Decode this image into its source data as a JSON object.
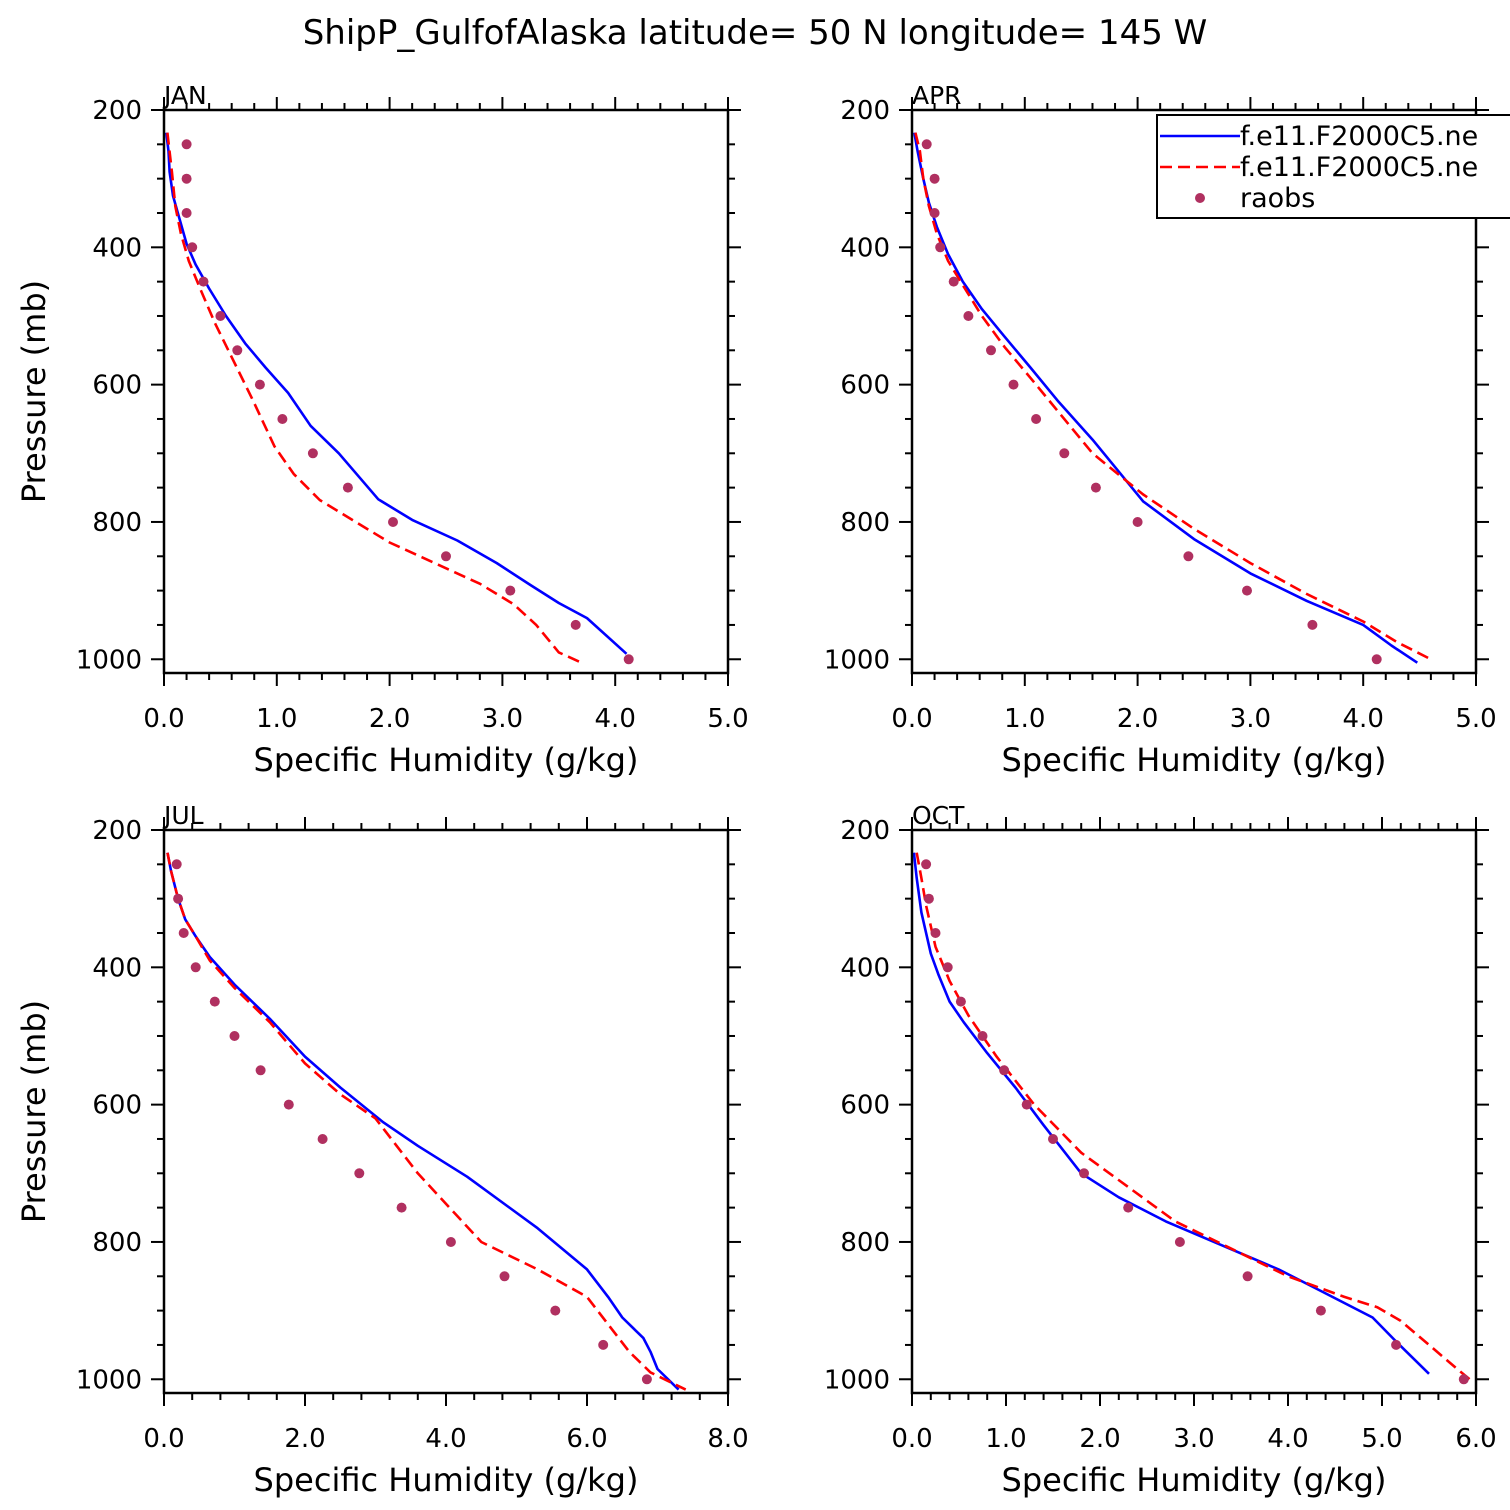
{
  "figure": {
    "title": "ShipP_GulfofAlaska  latitude= 50 N longitude= 145 W"
  },
  "legend": {
    "entries": [
      {
        "label": "f.e11.F2000C5.ne",
        "color": "#0000ff",
        "style": "solid"
      },
      {
        "label": "f.e11.F2000C5.ne",
        "color": "#ff0000",
        "style": "dashed"
      },
      {
        "label": "raobs",
        "color": "#b03060",
        "style": "marker"
      }
    ]
  },
  "chart_data": [
    {
      "type": "line",
      "panel_label": "JAN",
      "xlabel": "Specific Humidity (g/kg)",
      "ylabel": "Pressure (mb)",
      "xlim": [
        0,
        5
      ],
      "ylim": [
        1000,
        200
      ],
      "xticks": [
        "0.0",
        "1.0",
        "2.0",
        "3.0",
        "4.0",
        "5.0"
      ],
      "yticks": [
        "200",
        "400",
        "600",
        "800",
        "1000"
      ],
      "series": [
        {
          "style": "solid",
          "color": "#0000ff",
          "x": [
            0.02,
            0.04,
            0.05,
            0.08,
            0.14,
            0.2,
            0.28,
            0.4,
            0.55,
            0.72,
            0.9,
            1.1,
            1.3,
            1.55,
            1.9,
            2.2,
            2.6,
            2.95,
            3.25,
            3.5,
            3.75,
            4.1
          ],
          "y": [
            233,
            260,
            290,
            325,
            360,
            395,
            425,
            460,
            500,
            540,
            575,
            612,
            660,
            700,
            767,
            797,
            827,
            860,
            892,
            918,
            940,
            992
          ]
        },
        {
          "style": "dashed",
          "color": "#ff0000",
          "x": [
            0.03,
            0.07,
            0.1,
            0.15,
            0.22,
            0.32,
            0.45,
            0.6,
            0.78,
            0.98,
            1.15,
            1.38,
            1.7,
            2.0,
            2.4,
            2.8,
            3.1,
            3.3,
            3.5,
            3.7
          ],
          "y": [
            233,
            290,
            340,
            380,
            420,
            460,
            510,
            560,
            620,
            690,
            730,
            768,
            800,
            830,
            860,
            890,
            920,
            950,
            990,
            1005
          ]
        },
        {
          "style": "marker",
          "color": "#b03060",
          "x": [
            0.2,
            0.2,
            0.2,
            0.25,
            0.35,
            0.5,
            0.65,
            0.85,
            1.05,
            1.32,
            1.63,
            2.03,
            2.5,
            3.07,
            3.65,
            4.12
          ],
          "y": [
            250,
            300,
            350,
            400,
            450,
            500,
            550,
            600,
            650,
            700,
            750,
            800,
            850,
            900,
            950,
            1000
          ]
        }
      ]
    },
    {
      "type": "line",
      "panel_label": "APR",
      "xlabel": "Specific Humidity (g/kg)",
      "ylabel": "",
      "xlim": [
        0,
        5
      ],
      "ylim": [
        1000,
        200
      ],
      "xticks": [
        "0.0",
        "1.0",
        "2.0",
        "3.0",
        "4.0",
        "5.0"
      ],
      "yticks": [
        "200",
        "400",
        "600",
        "800",
        "1000"
      ],
      "series": [
        {
          "style": "solid",
          "color": "#0000ff",
          "x": [
            0.02,
            0.05,
            0.1,
            0.15,
            0.22,
            0.32,
            0.45,
            0.62,
            0.82,
            1.05,
            1.3,
            1.6,
            2.05,
            2.5,
            3.0,
            3.5,
            4.0,
            4.25,
            4.48
          ],
          "y": [
            233,
            260,
            300,
            335,
            370,
            410,
            450,
            490,
            530,
            575,
            625,
            680,
            770,
            825,
            875,
            915,
            950,
            980,
            1005
          ]
        },
        {
          "style": "dashed",
          "color": "#ff0000",
          "x": [
            0.03,
            0.07,
            0.1,
            0.15,
            0.22,
            0.32,
            0.45,
            0.62,
            0.82,
            1.05,
            1.3,
            1.6,
            2.05,
            2.5,
            3.0,
            3.5,
            4.0,
            4.3,
            4.6
          ],
          "y": [
            233,
            260,
            300,
            340,
            380,
            420,
            455,
            500,
            545,
            590,
            640,
            700,
            760,
            810,
            860,
            905,
            945,
            975,
            1000
          ]
        },
        {
          "style": "marker",
          "color": "#b03060",
          "x": [
            0.13,
            0.2,
            0.2,
            0.25,
            0.37,
            0.5,
            0.7,
            0.9,
            1.1,
            1.35,
            1.63,
            2.0,
            2.45,
            2.97,
            3.55,
            4.12
          ],
          "y": [
            250,
            300,
            350,
            400,
            450,
            500,
            550,
            600,
            650,
            700,
            750,
            800,
            850,
            900,
            950,
            1000
          ]
        }
      ]
    },
    {
      "type": "line",
      "panel_label": "JUL",
      "xlabel": "Specific Humidity (g/kg)",
      "ylabel": "Pressure (mb)",
      "xlim": [
        0,
        8
      ],
      "ylim": [
        1000,
        200
      ],
      "xticks": [
        "0.0",
        "2.0",
        "4.0",
        "6.0",
        "8.0"
      ],
      "yticks": [
        "200",
        "400",
        "600",
        "800",
        "1000"
      ],
      "series": [
        {
          "style": "solid",
          "color": "#0000ff",
          "x": [
            0.05,
            0.1,
            0.2,
            0.3,
            0.45,
            0.65,
            1.0,
            1.5,
            2.0,
            2.5,
            3.1,
            3.6,
            4.3,
            5.3,
            6.0,
            6.3,
            6.5,
            6.8,
            6.9,
            7.0,
            7.3
          ],
          "y": [
            233,
            260,
            300,
            330,
            355,
            385,
            425,
            475,
            530,
            575,
            625,
            660,
            705,
            780,
            840,
            880,
            910,
            940,
            960,
            985,
            1015
          ]
        },
        {
          "style": "dashed",
          "color": "#ff0000",
          "x": [
            0.05,
            0.1,
            0.2,
            0.3,
            0.45,
            0.65,
            1.0,
            1.5,
            2.0,
            2.5,
            3.0,
            3.6,
            4.5,
            5.3,
            6.0,
            6.3,
            6.6,
            6.9,
            7.4
          ],
          "y": [
            233,
            260,
            300,
            330,
            355,
            390,
            430,
            480,
            540,
            585,
            620,
            700,
            800,
            840,
            880,
            920,
            960,
            990,
            1015
          ]
        },
        {
          "style": "marker",
          "color": "#b03060",
          "x": [
            0.18,
            0.2,
            0.28,
            0.45,
            0.72,
            1.0,
            1.37,
            1.77,
            2.25,
            2.77,
            3.37,
            4.07,
            4.83,
            5.55,
            6.23,
            6.85
          ],
          "y": [
            250,
            300,
            350,
            400,
            450,
            500,
            550,
            600,
            650,
            700,
            750,
            800,
            850,
            900,
            950,
            1000
          ]
        }
      ]
    },
    {
      "type": "line",
      "panel_label": "OCT",
      "xlabel": "Specific Humidity (g/kg)",
      "ylabel": "",
      "xlim": [
        0,
        6
      ],
      "ylim": [
        1000,
        200
      ],
      "xticks": [
        "0.0",
        "1.0",
        "2.0",
        "3.0",
        "4.0",
        "5.0",
        "6.0"
      ],
      "yticks": [
        "200",
        "400",
        "600",
        "800",
        "1000"
      ],
      "series": [
        {
          "style": "solid",
          "color": "#0000ff",
          "x": [
            0.02,
            0.05,
            0.1,
            0.2,
            0.28,
            0.4,
            0.55,
            0.8,
            1.1,
            1.4,
            1.8,
            2.2,
            2.7,
            3.3,
            3.9,
            4.4,
            4.9,
            5.15,
            5.5
          ],
          "y": [
            233,
            270,
            320,
            380,
            410,
            450,
            480,
            525,
            575,
            630,
            700,
            735,
            770,
            805,
            840,
            875,
            910,
            945,
            992
          ]
        },
        {
          "style": "dashed",
          "color": "#ff0000",
          "x": [
            0.05,
            0.1,
            0.15,
            0.25,
            0.4,
            0.6,
            0.9,
            1.3,
            1.8,
            2.3,
            2.8,
            3.4,
            4.0,
            4.6,
            4.95,
            5.2,
            5.5,
            5.8,
            5.95
          ],
          "y": [
            233,
            270,
            310,
            370,
            420,
            470,
            530,
            600,
            670,
            720,
            770,
            810,
            850,
            880,
            895,
            915,
            950,
            985,
            1002
          ]
        },
        {
          "style": "marker",
          "color": "#b03060",
          "x": [
            0.15,
            0.18,
            0.25,
            0.38,
            0.52,
            0.75,
            0.98,
            1.22,
            1.5,
            1.83,
            2.3,
            2.85,
            3.57,
            4.35,
            5.15,
            5.87
          ],
          "y": [
            250,
            300,
            350,
            400,
            450,
            500,
            550,
            600,
            650,
            700,
            750,
            800,
            850,
            900,
            950,
            1000
          ]
        }
      ]
    }
  ]
}
